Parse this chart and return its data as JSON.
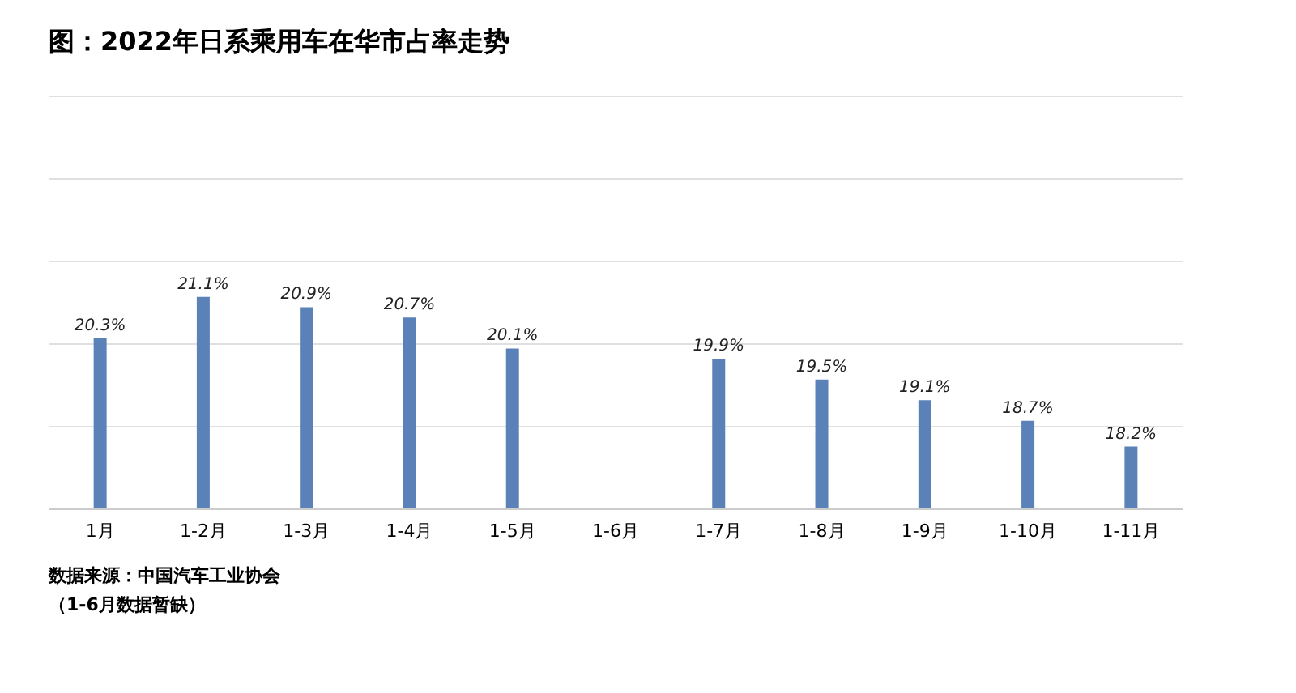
{
  "chart_data": {
    "type": "bar",
    "title": "图：2022年日系乘用车在华市占率走势",
    "categories": [
      "1月",
      "1-2月",
      "1-3月",
      "1-4月",
      "1-5月",
      "1-6月",
      "1-7月",
      "1-8月",
      "1-9月",
      "1-10月",
      "1-11月"
    ],
    "values": [
      20.3,
      21.1,
      20.9,
      20.7,
      20.1,
      null,
      19.9,
      19.5,
      19.1,
      18.7,
      18.2
    ],
    "color": "#5b82b8",
    "value_labels": [
      "20.3%",
      "21.1%",
      "20.9%",
      "20.7%",
      "20.1%",
      null,
      "19.9%",
      "19.5%",
      "19.1%",
      "18.7%",
      "18.2%"
    ],
    "ylim": [
      17,
      25
    ],
    "yticks": [
      {
        "value": 17,
        "label": null
      },
      {
        "value": 18.6,
        "label": null
      },
      {
        "value": 20.2,
        "label": null
      },
      {
        "value": 21.8,
        "label": null
      },
      {
        "value": 23.4,
        "label": null
      },
      {
        "value": 25,
        "label": null
      }
    ],
    "grid": "y",
    "tick_labels": "x",
    "annotations": [
      "数据来源：中国汽车工业协会",
      "（1-6月数据暂缺）"
    ]
  }
}
